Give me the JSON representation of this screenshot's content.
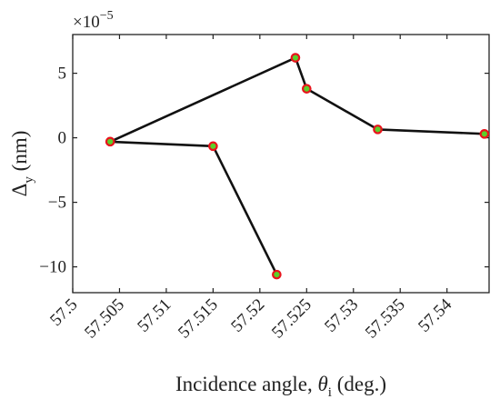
{
  "chart_data": {
    "type": "line",
    "xlabel": {
      "prefix": "Incidence angle, ",
      "symbol": "θ",
      "subscript": "i",
      "suffix": " (deg.)"
    },
    "ylabel": {
      "symbol": "Δ",
      "subscript": "y",
      "suffix": " (nm)"
    },
    "y_exponent": {
      "base": "×10",
      "power": "−5"
    },
    "xlim": [
      57.5,
      57.5445
    ],
    "ylim": [
      -12,
      8
    ],
    "x_ticks": [
      57.5,
      57.505,
      57.51,
      57.515,
      57.52,
      57.525,
      57.53,
      57.535,
      57.54
    ],
    "x_tick_labels": [
      "57.5",
      "57.505",
      "57.51",
      "57.515",
      "57.52",
      "57.525",
      "57.53",
      "57.535",
      "57.54"
    ],
    "y_ticks": [
      5,
      0,
      -5,
      -10
    ],
    "y_tick_labels": [
      "5",
      "0",
      "−5",
      "−10"
    ],
    "grid": false,
    "series": [
      {
        "x": [
          57.5218,
          57.515,
          57.504,
          57.5238,
          57.525,
          57.5326,
          57.544
        ],
        "y": [
          -10.6,
          -0.65,
          -0.3,
          6.2,
          3.8,
          0.65,
          0.3
        ],
        "line_color": "#111111",
        "marker_edge": "#e8141c",
        "marker_fill": "#5ccf2a"
      }
    ]
  }
}
